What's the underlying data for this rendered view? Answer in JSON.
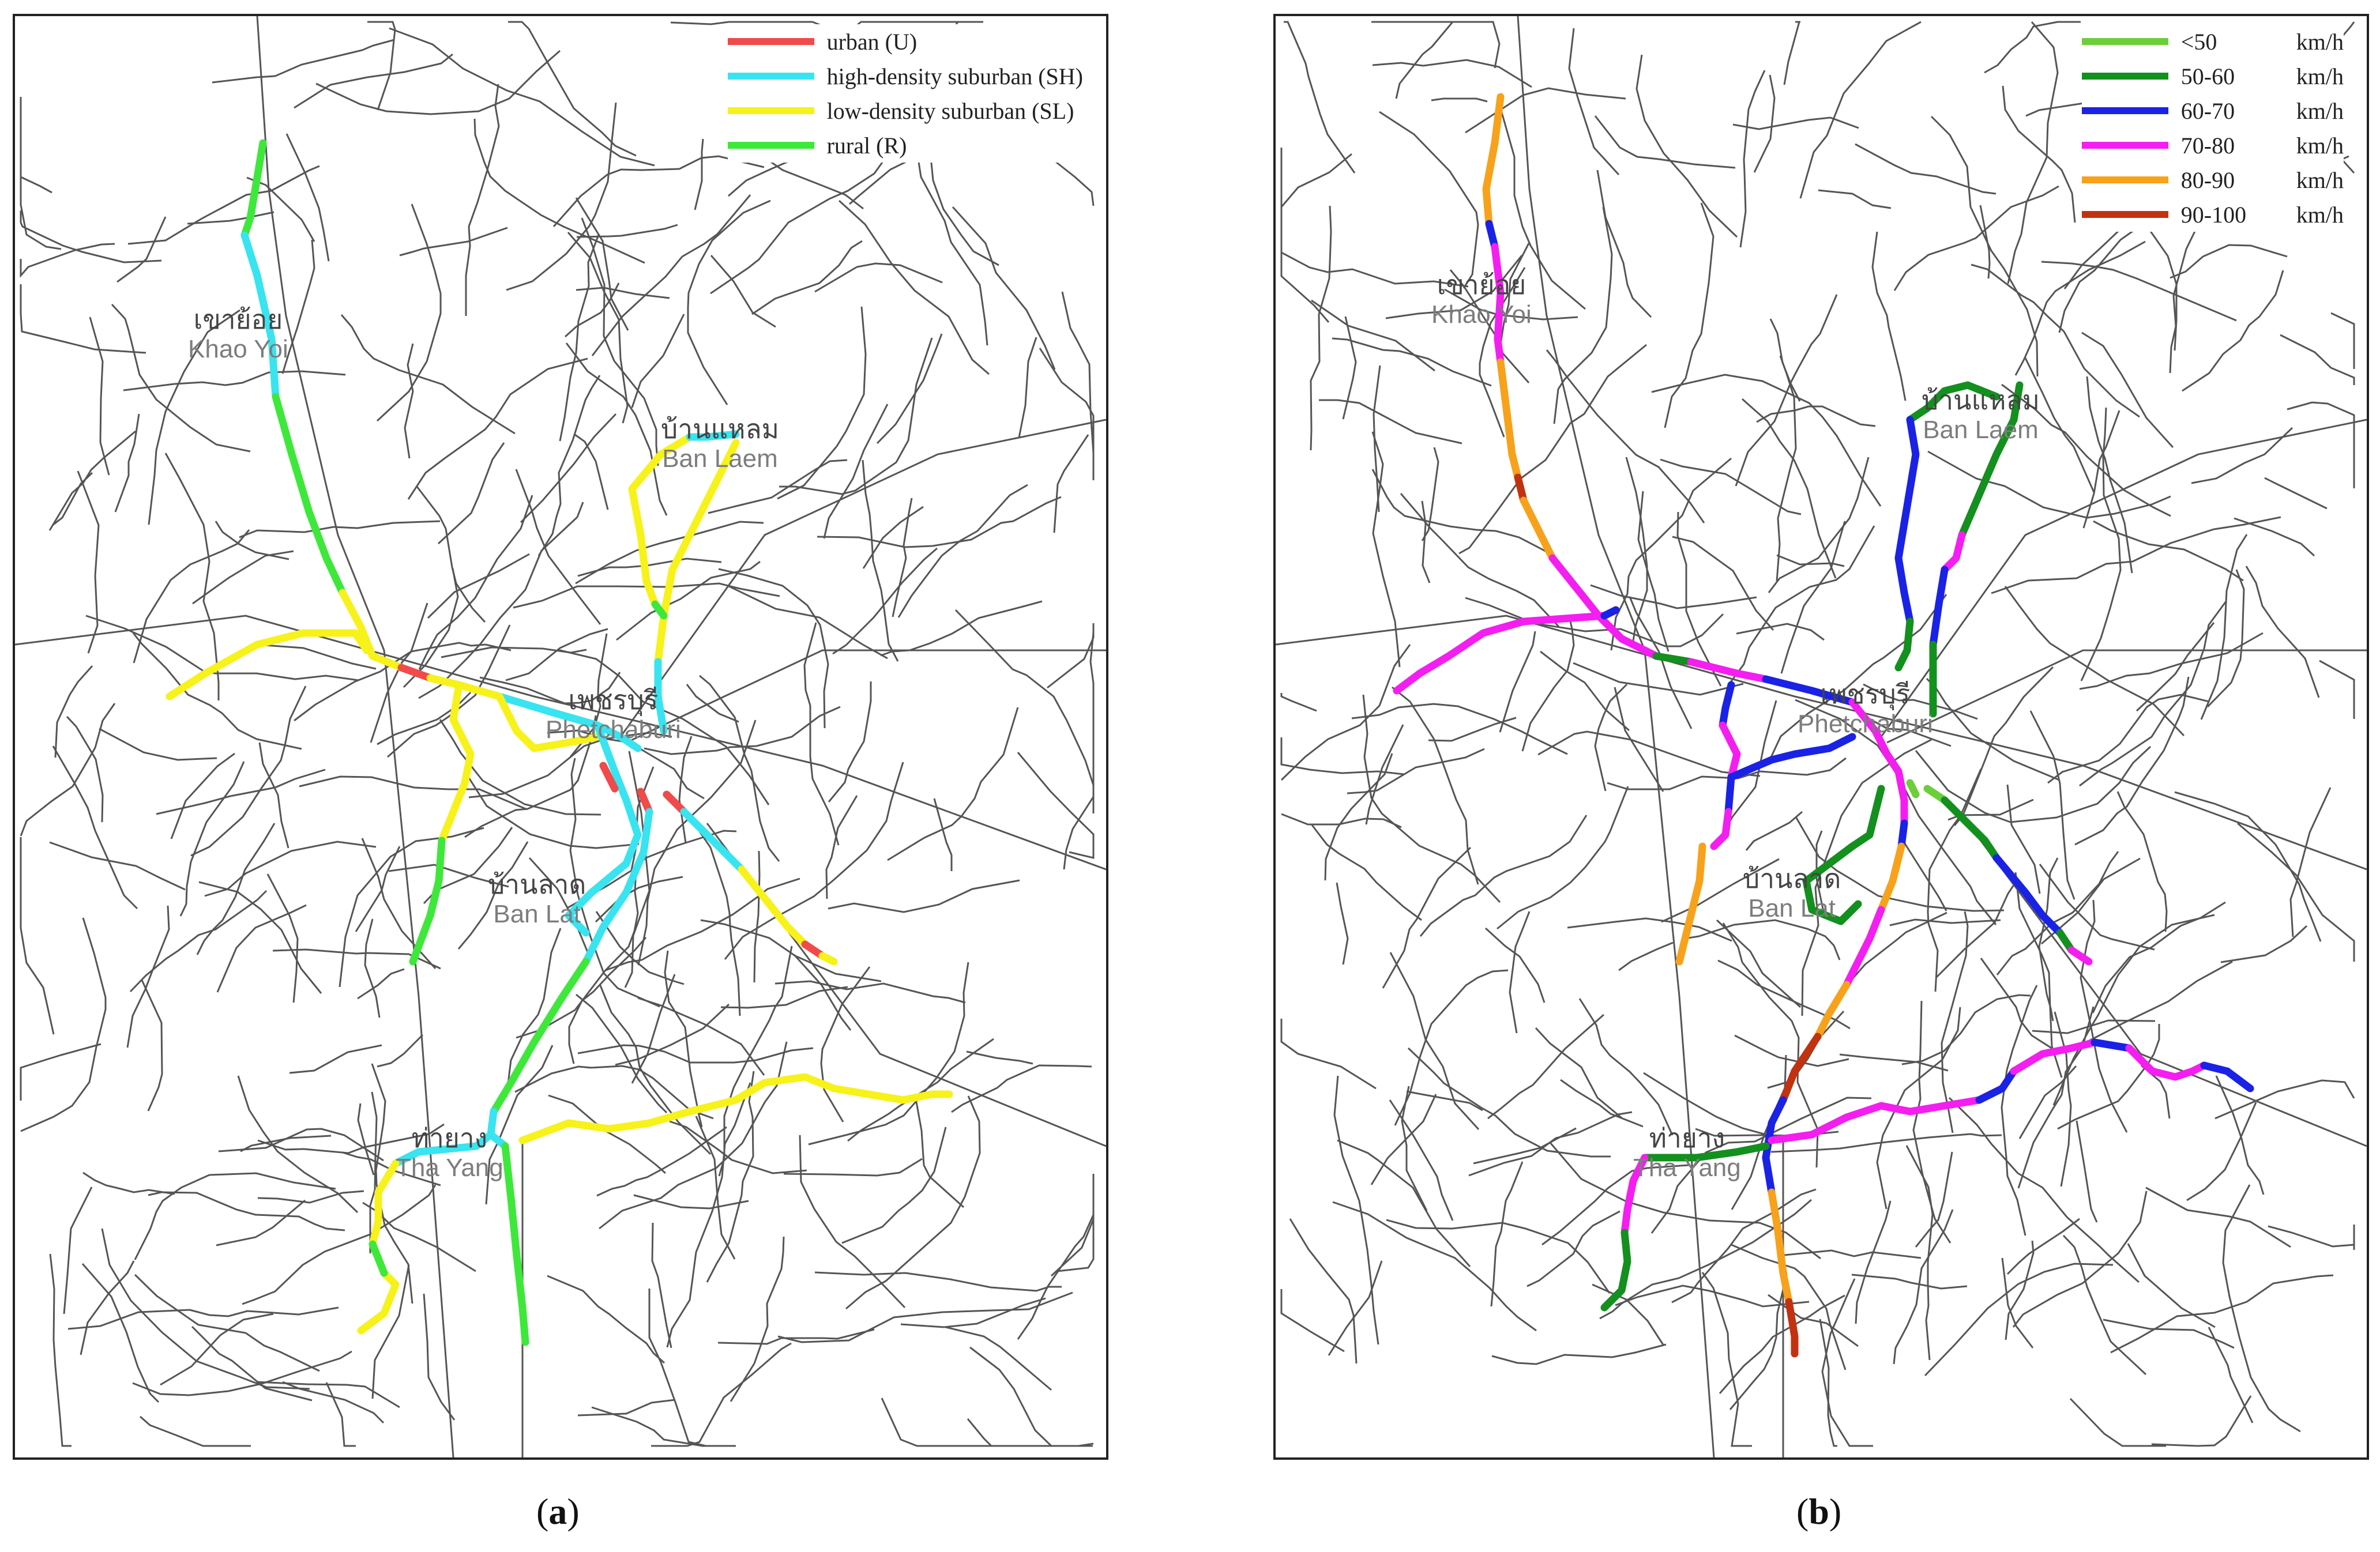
{
  "panels": [
    {
      "id": "a",
      "caption_letter": "a",
      "legend": [
        {
          "label": "urban (U)",
          "color": "#f04a4a"
        },
        {
          "label": "high-density suburban (SH)",
          "color": "#38e4f0"
        },
        {
          "label": "low-density suburban (SL)",
          "color": "#f6f21a"
        },
        {
          "label": "rural (R)",
          "color": "#3ee83a"
        }
      ],
      "places": [
        {
          "thai": "เขาย้อย",
          "latin": "Khao Yoi"
        },
        {
          "thai": "บ้านแหลม",
          "latin": "Ban Laem"
        },
        {
          "thai": "เพชรบุรี",
          "latin": "Phetchaburi"
        },
        {
          "thai": "บ้านลาด",
          "latin": "Ban Lat"
        },
        {
          "thai": "ท่ายาง",
          "latin": "Tha Yang"
        }
      ]
    },
    {
      "id": "b",
      "caption_letter": "b",
      "legend": [
        {
          "label": "<50",
          "unit": "km/h",
          "color": "#6ccf3a"
        },
        {
          "label": "50-60",
          "unit": "km/h",
          "color": "#13901e"
        },
        {
          "label": "60-70",
          "unit": "km/h",
          "color": "#1a22e6"
        },
        {
          "label": "70-80",
          "unit": "km/h",
          "color": "#f41ef0"
        },
        {
          "label": "80-90",
          "unit": "km/h",
          "color": "#f7a21a"
        },
        {
          "label": "90-100",
          "unit": "km/h",
          "color": "#c23210"
        }
      ],
      "places": [
        {
          "thai": "เขาย้อย",
          "latin": "Khao Yoi"
        },
        {
          "thai": "บ้านแหลม",
          "latin": "Ban Laem"
        },
        {
          "thai": "เพชรบุรี",
          "latin": "Phetchaburi"
        },
        {
          "thai": "บ้านลาด",
          "latin": "Ban Lat"
        },
        {
          "thai": "ท่ายาง",
          "latin": "Tha Yang"
        }
      ]
    }
  ],
  "map_colors": {
    "base_road": "#555555",
    "frame": "#222222"
  }
}
